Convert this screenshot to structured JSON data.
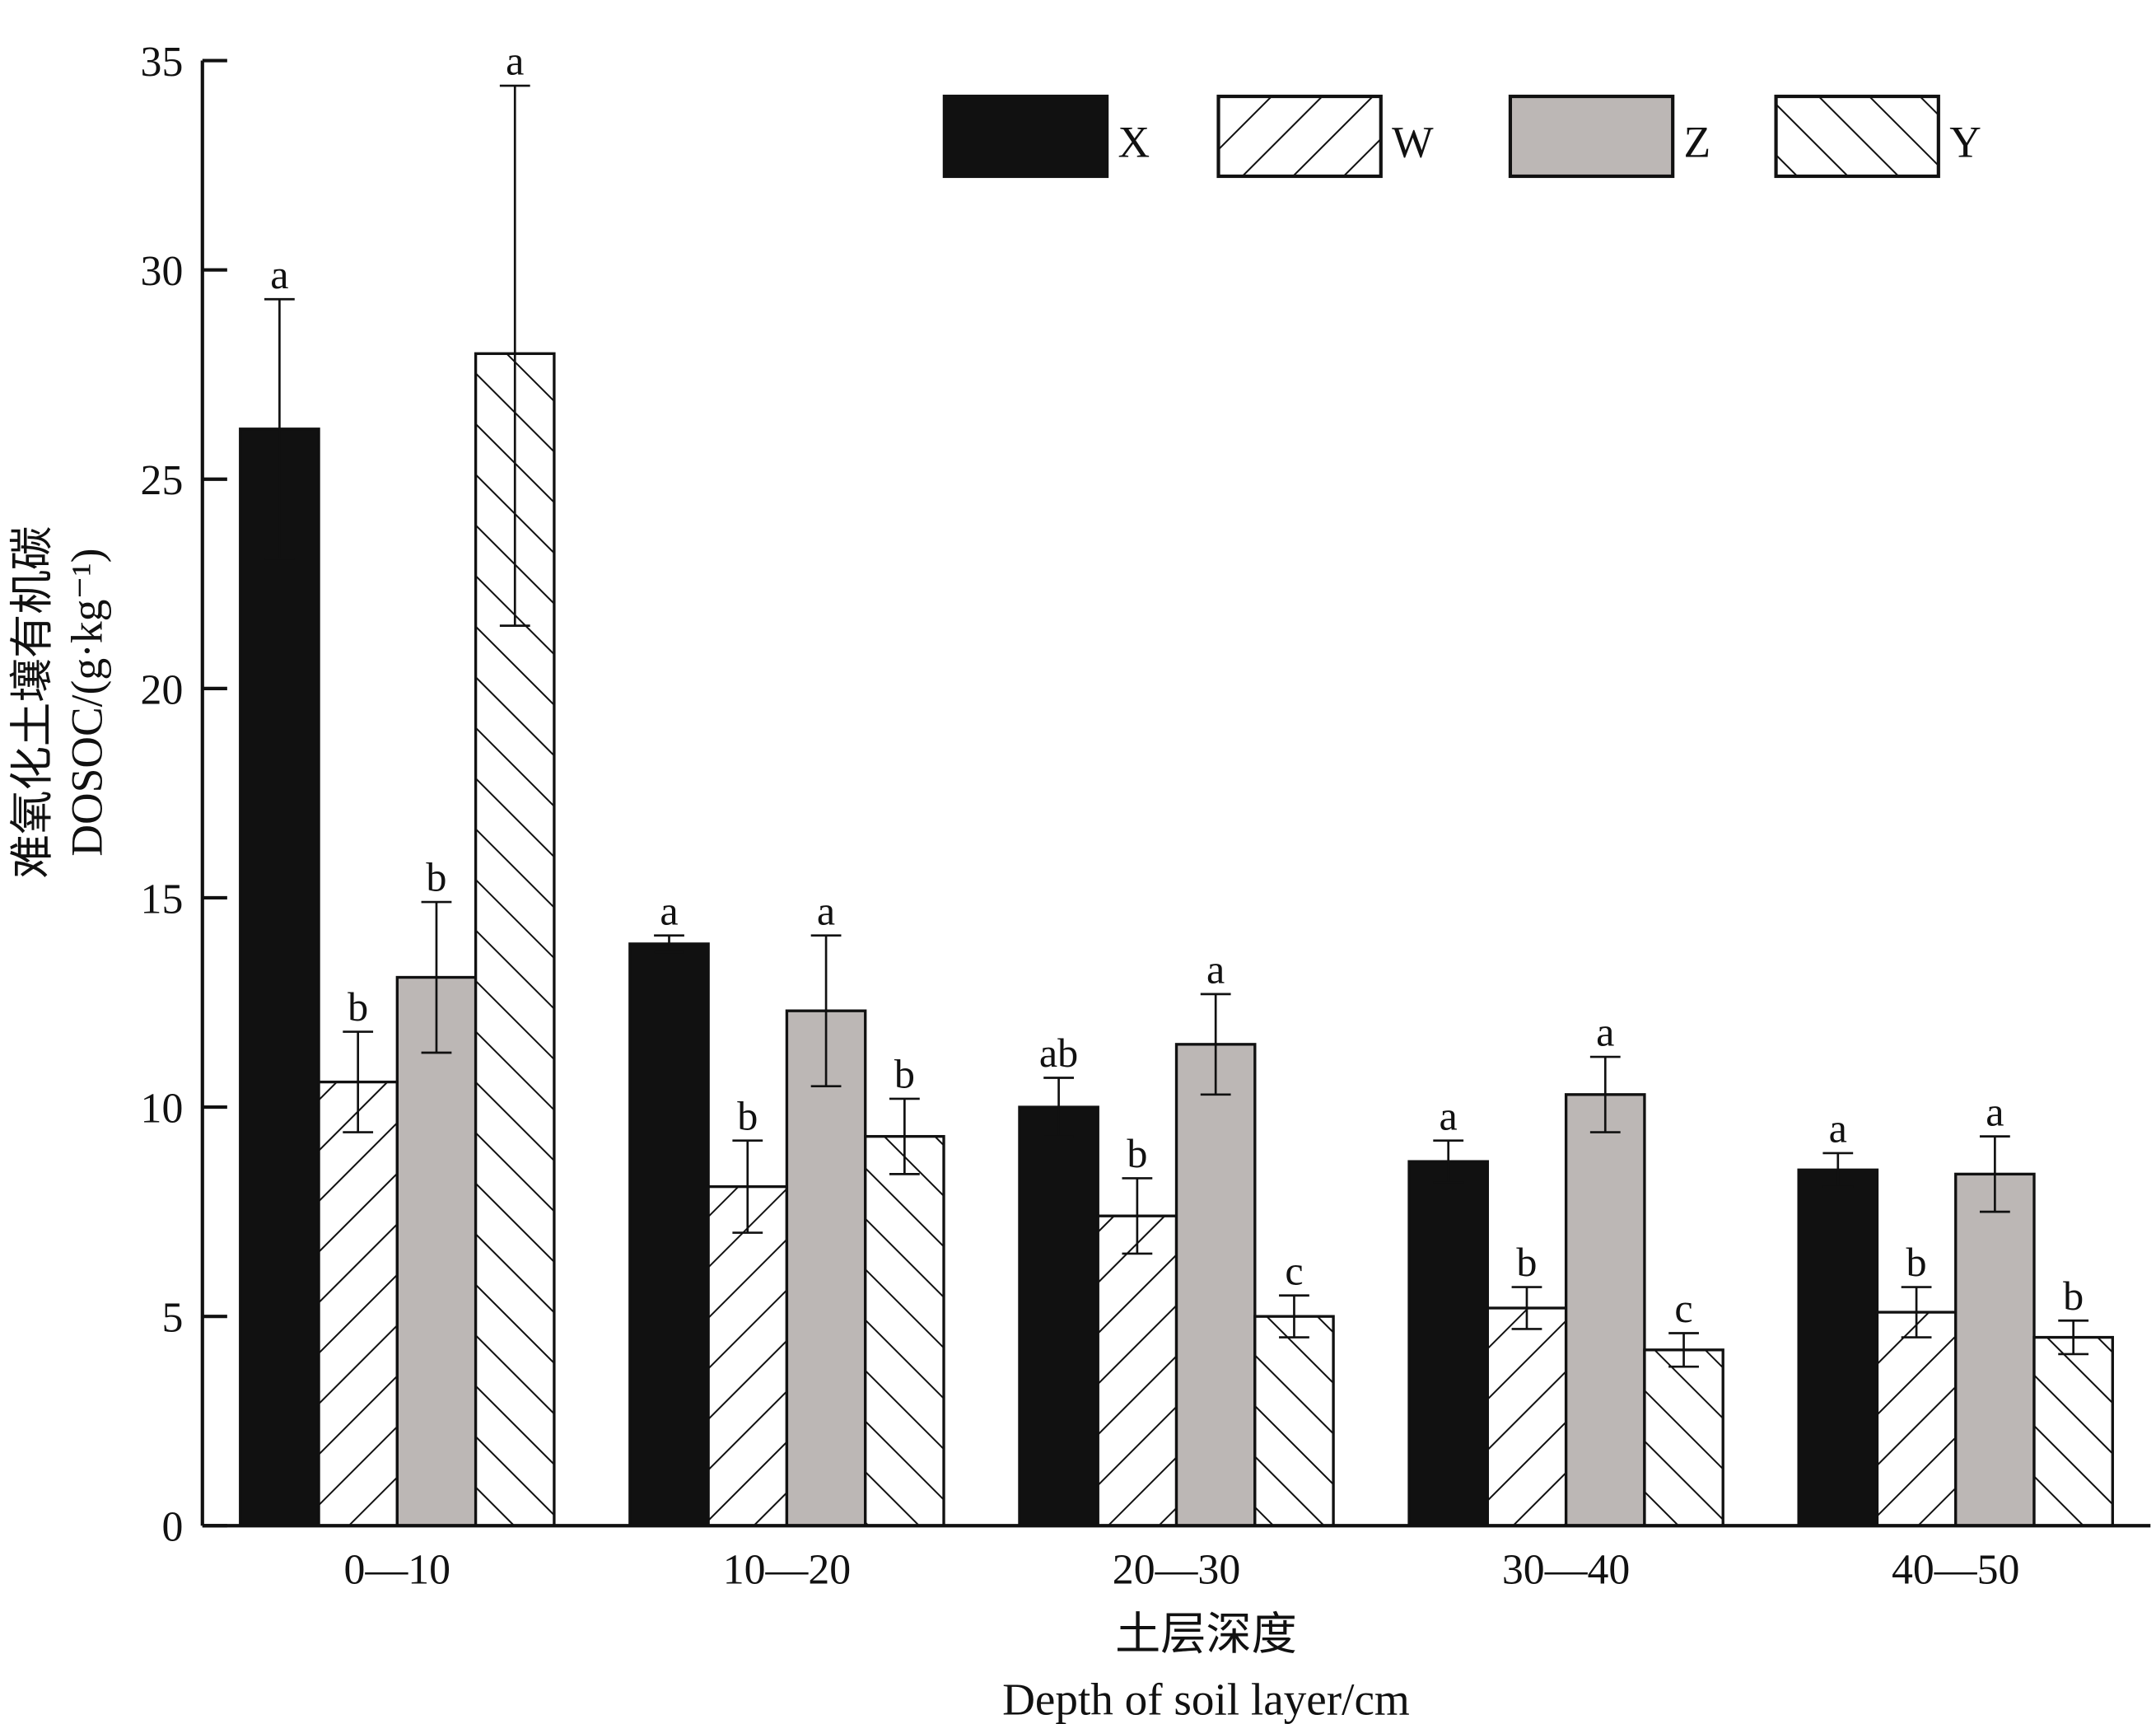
{
  "chart_data": {
    "type": "bar",
    "title": "",
    "xlabel_cn": "土层深度",
    "xlabel": "Depth of soil layer/cm",
    "ylabel_cn": "难氧化土壤有机碳",
    "ylabel": "DOSOC/(g·kg⁻¹)",
    "ylim": [
      0,
      35
    ],
    "yticks": [
      0,
      5,
      10,
      15,
      20,
      25,
      30,
      35
    ],
    "categories": [
      "0—10",
      "10—20",
      "20—30",
      "30—40",
      "40—50"
    ],
    "legend_position": "top-right",
    "series": [
      {
        "name": "X",
        "fill": "#111111",
        "pattern": "solid",
        "values": [
          26.2,
          13.9,
          10.0,
          8.7,
          8.5
        ],
        "error_upper": [
          29.3,
          14.1,
          10.7,
          9.2,
          8.9
        ],
        "error_lower": [
          23.1,
          13.7,
          9.3,
          8.2,
          8.1
        ],
        "letters": [
          "a",
          "a",
          "ab",
          "a",
          "a"
        ]
      },
      {
        "name": "W",
        "fill": "#ffffff",
        "pattern": "forward-hatch",
        "values": [
          10.6,
          8.1,
          7.4,
          5.2,
          5.1
        ],
        "error_upper": [
          11.8,
          9.2,
          8.3,
          5.7,
          5.7
        ],
        "error_lower": [
          9.4,
          7.0,
          6.5,
          4.7,
          4.5
        ],
        "letters": [
          "b",
          "b",
          "b",
          "b",
          "b"
        ]
      },
      {
        "name": "Z",
        "fill": "#bcb7b5",
        "pattern": "solid",
        "values": [
          13.1,
          12.3,
          11.5,
          10.3,
          8.4
        ],
        "error_upper": [
          14.9,
          14.1,
          12.7,
          11.2,
          9.3
        ],
        "error_lower": [
          11.3,
          10.5,
          10.3,
          9.4,
          7.5
        ],
        "letters": [
          "b",
          "a",
          "a",
          "a",
          "a"
        ]
      },
      {
        "name": "Y",
        "fill": "#ffffff",
        "pattern": "back-hatch",
        "values": [
          28.0,
          9.3,
          5.0,
          4.2,
          4.5
        ],
        "error_upper": [
          34.4,
          10.2,
          5.5,
          4.6,
          4.9
        ],
        "error_lower": [
          21.5,
          8.4,
          4.5,
          3.8,
          4.1
        ],
        "letters": [
          "a",
          "b",
          "c",
          "c",
          "b"
        ]
      }
    ]
  }
}
